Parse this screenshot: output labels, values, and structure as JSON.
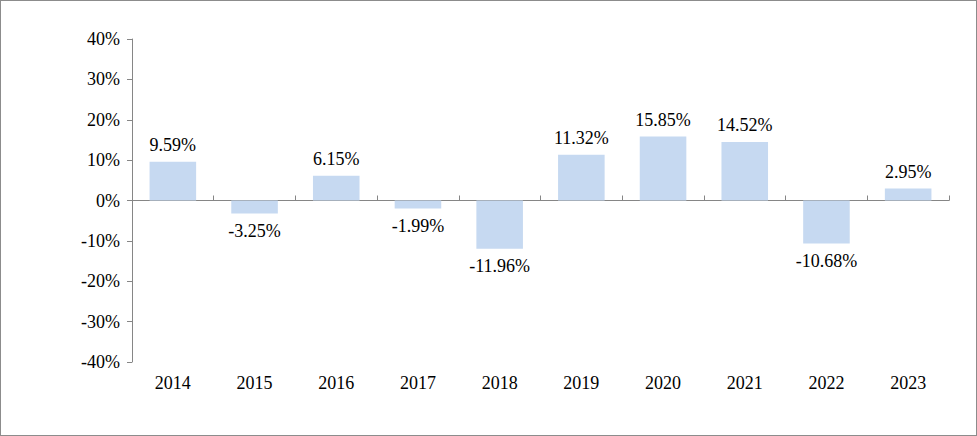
{
  "chart_data": {
    "type": "bar",
    "categories": [
      "2014",
      "2015",
      "2016",
      "2017",
      "2018",
      "2019",
      "2020",
      "2021",
      "2022",
      "2023"
    ],
    "values": [
      9.59,
      -3.25,
      6.15,
      -1.99,
      -11.96,
      11.32,
      15.85,
      14.52,
      -10.68,
      2.95
    ],
    "value_labels": [
      "9.59%",
      "-3.25%",
      "6.15%",
      "-1.99%",
      "-11.96%",
      "11.32%",
      "15.85%",
      "14.52%",
      "-10.68%",
      "2.95%"
    ],
    "data_labels": true,
    "color": "#c6d9f1",
    "ylim": [
      -40,
      40
    ],
    "yticks": [
      {
        "value": -40,
        "label": "-40%"
      },
      {
        "value": -30,
        "label": "-30%"
      },
      {
        "value": -20,
        "label": "-20%"
      },
      {
        "value": -10,
        "label": "-10%"
      },
      {
        "value": 0,
        "label": "0%"
      },
      {
        "value": 10,
        "label": "10%"
      },
      {
        "value": 20,
        "label": "20%"
      },
      {
        "value": 30,
        "label": "30%"
      },
      {
        "value": 40,
        "label": "40%"
      }
    ],
    "grid": false
  }
}
